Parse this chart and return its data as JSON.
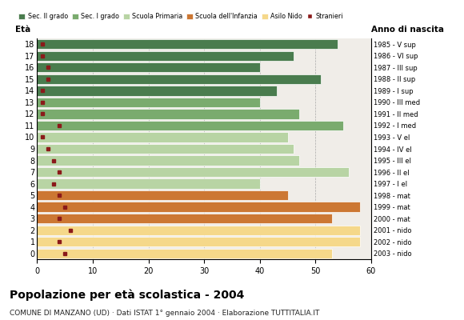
{
  "ages": [
    18,
    17,
    16,
    15,
    14,
    13,
    12,
    11,
    10,
    9,
    8,
    7,
    6,
    5,
    4,
    3,
    2,
    1,
    0
  ],
  "years": [
    "1985 - V sup",
    "1986 - VI sup",
    "1987 - III sup",
    "1988 - II sup",
    "1989 - I sup",
    "1990 - III med",
    "1991 - II med",
    "1992 - I med",
    "1993 - V el",
    "1994 - IV el",
    "1995 - III el",
    "1996 - II el",
    "1997 - I el",
    "1998 - mat",
    "1999 - mat",
    "2000 - mat",
    "2001 - nido",
    "2002 - nido",
    "2003 - nido"
  ],
  "values": [
    54,
    46,
    40,
    51,
    43,
    40,
    47,
    55,
    45,
    46,
    47,
    56,
    40,
    45,
    58,
    53,
    58,
    58,
    53
  ],
  "stranieri": [
    1,
    1,
    2,
    2,
    1,
    1,
    1,
    4,
    1,
    2,
    3,
    4,
    3,
    4,
    5,
    4,
    6,
    4,
    5
  ],
  "bar_colors": [
    "#4a7c4e",
    "#4a7c4e",
    "#4a7c4e",
    "#4a7c4e",
    "#4a7c4e",
    "#7aab6e",
    "#7aab6e",
    "#7aab6e",
    "#b8d4a4",
    "#b8d4a4",
    "#b8d4a4",
    "#b8d4a4",
    "#b8d4a4",
    "#cc7733",
    "#cc7733",
    "#cc7733",
    "#f5d88a",
    "#f5d88a",
    "#f5d88a"
  ],
  "legend_labels": [
    "Sec. II grado",
    "Sec. I grado",
    "Scuola Primaria",
    "Scuola dell'Infanzia",
    "Asilo Nido",
    "Stranieri"
  ],
  "legend_colors": [
    "#4a7c4e",
    "#7aab6e",
    "#b8d4a4",
    "#cc7733",
    "#f5d88a",
    "#8b1a1a"
  ],
  "stranieri_color": "#8b1a1a",
  "title": "Popolazione per età scolastica - 2004",
  "subtitle": "COMUNE DI MANZANO (UD) · Dati ISTAT 1° gennaio 2004 · Elaborazione TUTTITALIA.IT",
  "xlabel_eta": "Età",
  "xlabel_anno": "Anno di nascita",
  "xlim": [
    0,
    60
  ],
  "xticks": [
    0,
    10,
    20,
    30,
    40,
    50,
    60
  ],
  "bg_color": "#ffffff",
  "bar_bg_color": "#f0ede8",
  "grid_color": "#aaaaaa",
  "dpi": 100,
  "figsize": [
    5.8,
    4.0
  ]
}
